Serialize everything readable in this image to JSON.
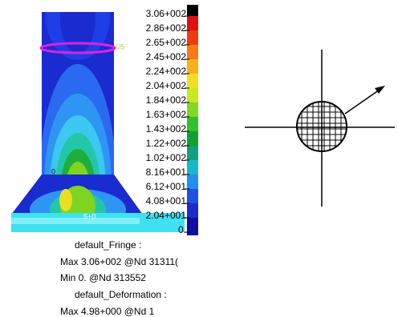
{
  "model": {
    "labels": [
      "05",
      "0",
      "5+0"
    ]
  },
  "legend": {
    "labels": [
      "3.06+002",
      "2.86+002",
      "2.65+002",
      "2.45+002",
      "2.24+002",
      "2.04+002",
      "1.84+002",
      "1.63+002",
      "1.43+002",
      "1.22+002",
      "1.02+002",
      "8.16+001",
      "6.12+001",
      "4.08+001",
      "2.04+001",
      "0."
    ]
  },
  "info": [
    "default_Fringe :",
    "Max 3.06+002 @Nd 31311(",
    "Min  0. @Nd 313552",
    "default_Deformation :",
    "Max 4.98+000 @Nd 1"
  ]
}
